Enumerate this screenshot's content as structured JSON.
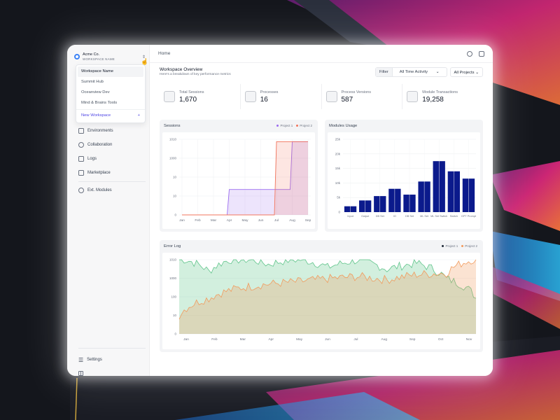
{
  "workspace": {
    "company": "Acme Co.",
    "label": "WORKSPACE NAME",
    "dropdown_items": [
      {
        "label": "Workspace Name",
        "active": true
      },
      {
        "label": "Summit Hub",
        "active": false
      },
      {
        "label": "Oceanview Dev",
        "active": false
      },
      {
        "label": "Mind & Brains Tools",
        "active": false
      }
    ],
    "new_workspace": "New Workspace",
    "new_icon": "+"
  },
  "nav": {
    "items": [
      {
        "label": "Environments",
        "icon": "environments-icon"
      },
      {
        "label": "Collaboration",
        "icon": "collaboration-icon"
      },
      {
        "label": "Logs",
        "icon": "logs-icon"
      },
      {
        "label": "Marketplace",
        "icon": "marketplace-icon"
      },
      {
        "label": "Ext. Modules",
        "icon": "modules-icon"
      }
    ],
    "settings": "Settings"
  },
  "topbar": {
    "breadcrumb": "Home"
  },
  "overview": {
    "title": "Workspace Overview",
    "subtitle": "Here's a breakdown of key performance metrics",
    "filter_label": "Filter",
    "time_filter": "All Time Activity",
    "project_filter": "All Projects"
  },
  "metrics": [
    {
      "label": "Total Sessions",
      "value": "1,670"
    },
    {
      "label": "Processes",
      "value": "16"
    },
    {
      "label": "Process Versions",
      "value": "587"
    },
    {
      "label": "Module Transactions",
      "value": "19,258"
    }
  ],
  "colors": {
    "project1": "#9b6cf0",
    "project2": "#f2745c",
    "bars": "#0b1a8c",
    "error_p1": "#5fc48a",
    "error_p2": "#f29a5c"
  },
  "chart_data": [
    {
      "type": "line",
      "title": "Sessions",
      "x": [
        "Jan",
        "Feb",
        "Mar",
        "Apr",
        "May",
        "Jun",
        "Jul",
        "Aug",
        "Sep"
      ],
      "y_ticks": [
        "1010",
        "1000",
        "10",
        "10",
        "0"
      ],
      "y_scale": "log",
      "series": [
        {
          "name": "Project 1",
          "values": [
            0,
            0,
            0,
            10,
            10,
            10,
            10,
            1010,
            1000
          ]
        },
        {
          "name": "Project 2",
          "values": [
            0,
            0,
            0,
            0,
            0,
            0,
            1000,
            1000,
            1010
          ]
        }
      ],
      "legend": "top-right"
    },
    {
      "type": "bar",
      "title": "Modules Usage",
      "categories": [
        "Input",
        "Output",
        "DB Set",
        "IO",
        "DB Set",
        "ML Set",
        "ML Set Switch",
        "Switch",
        "GPT Prompt"
      ],
      "values": [
        2000,
        4000,
        5500,
        8000,
        6000,
        10500,
        17500,
        14000,
        11500
      ],
      "y_ticks": [
        "25k",
        "20k",
        "15k",
        "10k",
        "5k",
        "0"
      ],
      "ylim": [
        0,
        25000
      ]
    },
    {
      "type": "area",
      "title": "Error Log",
      "x": [
        "Jan",
        "Feb",
        "Mar",
        "Apr",
        "May",
        "Jun",
        "Jul",
        "Aug",
        "Sep",
        "Oct",
        "Nov"
      ],
      "y_ticks": [
        "1010",
        "1000",
        "100",
        "10",
        "0"
      ],
      "y_scale": "log",
      "series": [
        {
          "name": "Project 1",
          "values": [
            1500,
            400,
            1600,
            800,
            1400,
            600,
            1200,
            500,
            900,
            200,
            30
          ]
        },
        {
          "name": "Project 2",
          "values": [
            5,
            30,
            80,
            120,
            150,
            200,
            250,
            180,
            300,
            350,
            1400
          ]
        }
      ],
      "legend": "top-right"
    }
  ]
}
